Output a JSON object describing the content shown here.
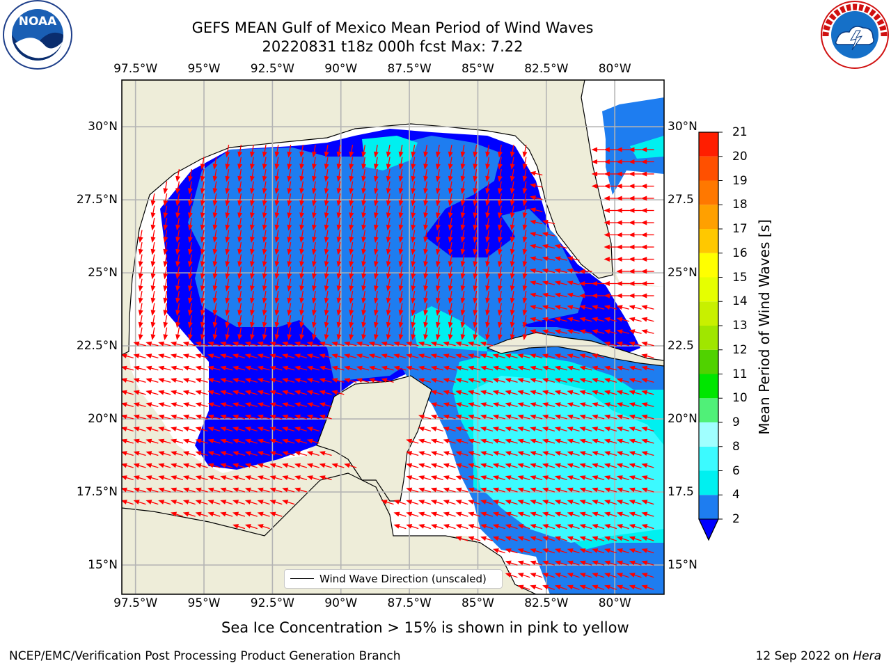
{
  "title": {
    "line1": "GEFS MEAN Gulf of Mexico Mean Period of Wind Waves",
    "line2": "20220831 t18z 000h fcst   Max: 7.22"
  },
  "map": {
    "lon_ticks": [
      "97.5°W",
      "95°W",
      "92.5°W",
      "90°W",
      "87.5°W",
      "85°W",
      "82.5°W",
      "80°W"
    ],
    "lat_ticks_left": [
      "30°N",
      "27.5°N",
      "25°N",
      "22.5°N",
      "20°N",
      "17.5°N",
      "15°N"
    ],
    "lat_ticks_right": [
      "30°N",
      "27.5",
      "25°N",
      "22.5",
      "20°N",
      "17.5",
      "15°N"
    ],
    "extent": {
      "lon_min": -98,
      "lon_max": -78.2,
      "lat_min": 14,
      "lat_max": 31.6
    },
    "colors": {
      "land": "#eeedd9",
      "arrow": "#ff0000",
      "grid": "#b4b4b4",
      "coast": "#000000"
    },
    "legend_text": "Wind Wave Direction (unscaled)"
  },
  "colorbar": {
    "label": "Mean Period of Wind Waves [s]",
    "ticks": [
      "21",
      "20",
      "19",
      "18",
      "17",
      "16",
      "15",
      "14",
      "13",
      "12",
      "11",
      "10",
      "9",
      "8",
      "6",
      "4",
      "2"
    ],
    "levels": [
      {
        "max": "4",
        "color": "#1e7df0"
      },
      {
        "max": "6",
        "color": "#00f0f0"
      },
      {
        "max": "8",
        "color": "#3cfaff"
      },
      {
        "max": "9",
        "color": "#a0ffff"
      },
      {
        "max": "10",
        "color": "#50f078"
      },
      {
        "max": "11",
        "color": "#00e600"
      },
      {
        "max": "12",
        "color": "#50d200"
      },
      {
        "max": "13",
        "color": "#a0e600"
      },
      {
        "max": "14",
        "color": "#c8f000"
      },
      {
        "max": "15",
        "color": "#e6ff00"
      },
      {
        "max": "16",
        "color": "#ffff00"
      },
      {
        "max": "17",
        "color": "#ffc800"
      },
      {
        "max": "18",
        "color": "#ffa000"
      },
      {
        "max": "19",
        "color": "#ff7800"
      },
      {
        "max": "20",
        "color": "#ff5000"
      },
      {
        "max": "21",
        "color": "#ff1e00"
      }
    ],
    "under_color": "#0000ff"
  },
  "period_field_colors": {
    "under_2s": "#0000ff",
    "2_to_4s": "#1e7df0",
    "4_to_6s": "#00f0f0",
    "6_to_8s": "#3cfaff"
  },
  "ice_note": "Sea Ice Concentration > 15% is shown in pink to yellow",
  "footer": {
    "left": "NCEP/EMC/Verification Post Processing Product Generation Branch",
    "right_prefix": "12 Sep 2022 on ",
    "right_host": "Hera"
  },
  "logos": {
    "noaa": {
      "text": "NOAA",
      "ring_text": "NATIONAL OCEANIC AND ATMOSPHERIC ADMINISTRATION · U.S. DEPARTMENT OF COMMERCE"
    },
    "nws": {
      "ring_text": "NATIONAL WEATHER SERVICE"
    }
  }
}
